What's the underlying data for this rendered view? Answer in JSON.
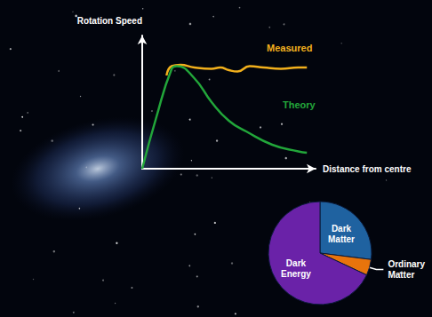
{
  "chart_data": [
    {
      "type": "line",
      "xlabel": "Distance from centre",
      "ylabel": "Rotation Speed",
      "xlim": [
        0,
        100
      ],
      "ylim": [
        0,
        100
      ],
      "tick_labels": false,
      "grid": false,
      "series": [
        {
          "name": "Measured",
          "color": "#f2b01c",
          "x": [
            14,
            17,
            22,
            30,
            40,
            45,
            50,
            55,
            62,
            70,
            80,
            90,
            95
          ],
          "values": [
            70,
            77,
            78,
            76,
            75,
            76,
            74,
            73,
            77,
            76,
            75,
            76,
            76
          ]
        },
        {
          "name": "Theory",
          "color": "#22a63a",
          "x": [
            0,
            8,
            17,
            20,
            30,
            40,
            50,
            60,
            75,
            90,
            95
          ],
          "values": [
            0,
            38,
            75,
            77,
            68,
            50,
            36,
            28,
            18,
            13,
            12
          ]
        }
      ]
    },
    {
      "type": "pie",
      "categories": [
        "Dark Matter",
        "Ordinary Matter",
        "Dark Energy"
      ],
      "values": [
        27,
        5,
        68
      ],
      "colors": [
        "#1f62a0",
        "#e8740c",
        "#6a22a8"
      ]
    }
  ]
}
